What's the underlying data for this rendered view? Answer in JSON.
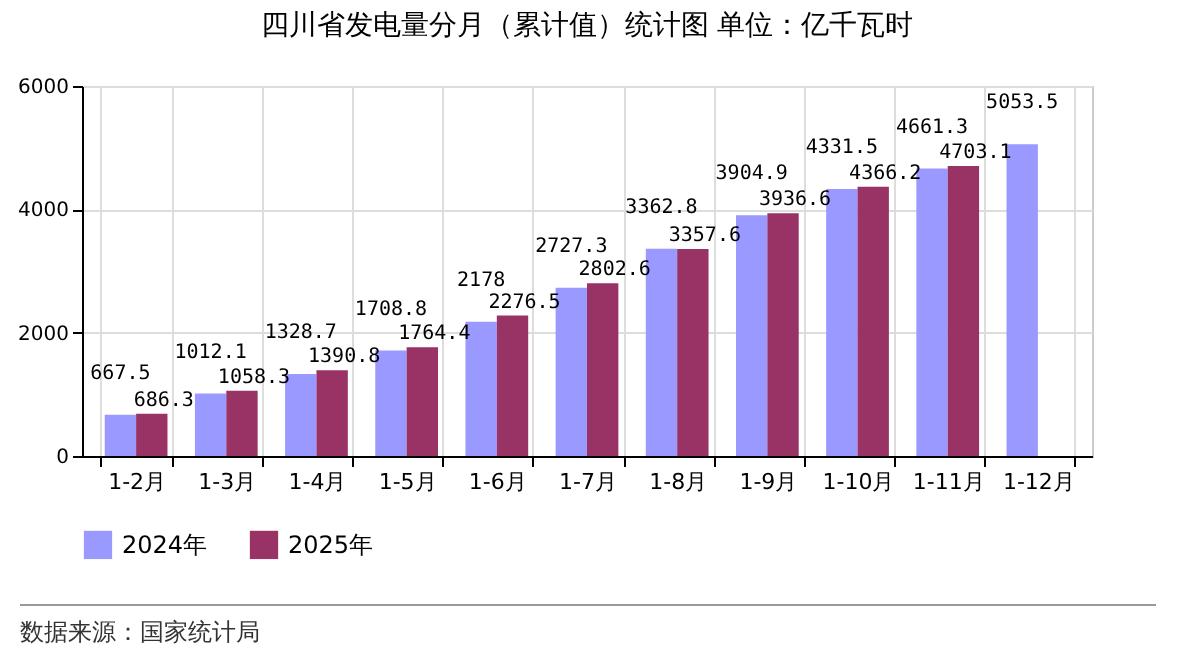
{
  "chart_data": {
    "type": "bar",
    "title": "四川省发电量分月（累计值）统计图 单位：亿千瓦时",
    "categories": [
      "1-2月",
      "1-3月",
      "1-4月",
      "1-5月",
      "1-6月",
      "1-7月",
      "1-8月",
      "1-9月",
      "1-10月",
      "1-11月",
      "1-12月"
    ],
    "series": [
      {
        "name": "2024年",
        "color": "#9999ff",
        "values": [
          667.5,
          1012.1,
          1328.7,
          1708.8,
          2178,
          2727.3,
          3362.8,
          3904.9,
          4331.5,
          4661.3,
          5053.5
        ]
      },
      {
        "name": "2025年",
        "color": "#993366",
        "values": [
          686.3,
          1058.3,
          1390.8,
          1764.4,
          2276.5,
          2802.6,
          3357.6,
          3936.6,
          4366.2,
          4703.1,
          null
        ]
      }
    ],
    "ylim": [
      0,
      6000
    ],
    "yticks": [
      0,
      2000,
      4000,
      6000
    ],
    "grid": true,
    "legend": "bottom",
    "data_labels": true,
    "annotations": [
      "数据来源：国家统计局"
    ]
  }
}
